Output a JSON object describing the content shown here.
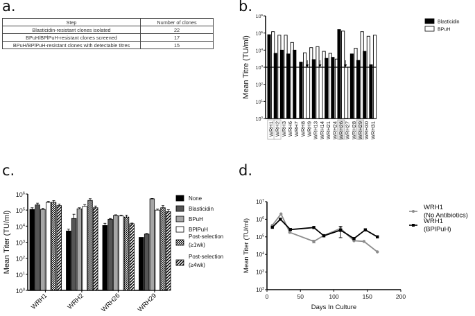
{
  "panels": {
    "a": {
      "label": "a.",
      "table": {
        "headers": [
          "Step",
          "Number of clones"
        ],
        "rows": [
          [
            "Blasticidin-resistant clones isolated",
            "22"
          ],
          [
            "BPuH/BPlPuH-resistant clones screened",
            "17"
          ],
          [
            "BPuH/BPlPuH-resistant clones with detectable titres",
            "15"
          ]
        ]
      }
    },
    "b": {
      "label": "b."
    },
    "c": {
      "label": "c."
    },
    "d": {
      "label": "d."
    }
  },
  "chart_data": [
    {
      "id": "b",
      "type": "bar",
      "title": "",
      "xlabel": "",
      "ylabel": "Mean Titre (TU/ml)",
      "yscale": "log",
      "ylim": [
        1,
        1000000
      ],
      "yticks": [
        "10^0",
        "10^1",
        "10^2",
        "10^3",
        "10^4",
        "10^5",
        "10^6"
      ],
      "threshold_line": 1000,
      "categories": [
        "WRH1",
        "WRH2",
        "WRH3",
        "WRH6",
        "WRH7",
        "WRH8",
        "WRH9",
        "WRH13",
        "WRH14",
        "WRH21",
        "WRH24",
        "WRH26",
        "WRH27",
        "WRH28",
        "WRH29",
        "WRH30",
        "WRH31"
      ],
      "boxed_categories": [
        "WRH1",
        "WRH2",
        "WRH26",
        "WRH29"
      ],
      "series": [
        {
          "name": "Blasticidin",
          "color": "#000000",
          "values": [
            80000,
            6500,
            10000,
            6000,
            10000,
            2000,
            null,
            2800,
            null,
            3300,
            3800,
            160000,
            null,
            6000,
            2500,
            8500,
            1400
          ]
        },
        {
          "name": "BPuH",
          "color": "#ffffff",
          "values": [
            120000,
            75000,
            75000,
            28000,
            null,
            7000,
            14000,
            16000,
            8500,
            6500,
            3000,
            130000,
            1000,
            13000,
            120000,
            65000,
            75000
          ]
        }
      ],
      "below_detection_arrows": [
        "WRH9",
        "WRH14",
        "WRH27"
      ],
      "legend": {
        "position": "top-right",
        "entries": [
          "Blasticidin",
          "BPuH"
        ]
      },
      "grid": false
    },
    {
      "id": "c",
      "type": "bar",
      "title": "",
      "xlabel": "",
      "ylabel": "Mean Titer (TU/ml)",
      "yscale": "log",
      "ylim": [
        1,
        1000000
      ],
      "yticks": [
        "10^0",
        "10^1",
        "10^2",
        "10^3",
        "10^4",
        "10^5",
        "10^6"
      ],
      "categories": [
        "WRH1",
        "WRH2",
        "WRH26",
        "WRH29"
      ],
      "series": [
        {
          "name": "None",
          "fill": "solid",
          "color": "#000000",
          "values": [
            110000,
            5000,
            11000,
            2000
          ],
          "errors": [
            30000,
            1500,
            4000,
            0
          ]
        },
        {
          "name": "Blasticidin",
          "fill": "solid",
          "color": "#555555",
          "values": [
            210000,
            30000,
            27000,
            3200
          ],
          "errors": [
            60000,
            25000,
            3000,
            300
          ]
        },
        {
          "name": "BPuH",
          "fill": "solid",
          "color": "#a6a6a6",
          "values": [
            110000,
            120000,
            47000,
            500000
          ],
          "errors": [
            20000,
            20000,
            4000,
            30000
          ]
        },
        {
          "name": "BPlPuH",
          "fill": "solid",
          "color": "#ffffff",
          "values": [
            300000,
            170000,
            43000,
            100000
          ],
          "errors": [
            50000,
            50000,
            6000,
            15000
          ]
        },
        {
          "name": "Post-selection (≥1wk)",
          "fill": "checker",
          "color": "#000000",
          "values": [
            310000,
            400000,
            37000,
            140000
          ],
          "errors": [
            80000,
            110000,
            12000,
            50000
          ]
        },
        {
          "name": "Post-selection (≥4wk)",
          "fill": "hatch",
          "color": "#000000",
          "values": [
            190000,
            140000,
            14000,
            80000
          ],
          "errors": [
            50000,
            40000,
            1500,
            25000
          ]
        }
      ],
      "legend": {
        "position": "right",
        "entries": [
          "None",
          "Blasticidin",
          "BPuH",
          "BPlPuH",
          "Post-selection (≥1wk)",
          "Post-selection (≥4wk)"
        ]
      },
      "grid": false
    },
    {
      "id": "d",
      "type": "line",
      "title": "",
      "xlabel": "Days In Culture",
      "ylabel": "Mean Titer (TU/ml)",
      "xlim": [
        0,
        200
      ],
      "xticks": [
        "0",
        "50",
        "100",
        "150",
        "200"
      ],
      "yscale": "log",
      "ylim": [
        100,
        10000000
      ],
      "yticks": [
        "10^2",
        "10^3",
        "10^4",
        "10^5",
        "10^6",
        "10^7"
      ],
      "series": [
        {
          "name": "WRH1 (No Antibiotics)",
          "label_lines": [
            "WRH1",
            "(No Antibiotics)"
          ],
          "color": "#8c8c8c",
          "marker": "circle",
          "x": [
            8,
            21,
            34,
            70,
            85,
            110,
            130,
            145,
            165
          ],
          "y": [
            450000,
            2000000,
            180000,
            55000,
            120000,
            300000,
            60000,
            55000,
            14000
          ],
          "errors": [
            0,
            0,
            0,
            10000,
            0,
            100000,
            0,
            0,
            0
          ]
        },
        {
          "name": "WRH1 (BPlPuH)",
          "label_lines": [
            "WRH1",
            "(BPlPuH)"
          ],
          "color": "#000000",
          "marker": "square",
          "x": [
            8,
            20,
            35,
            70,
            85,
            110,
            130,
            147,
            165
          ],
          "y": [
            350000,
            1000000,
            260000,
            340000,
            115000,
            240000,
            80000,
            250000,
            100000
          ],
          "errors": [
            0,
            0,
            0,
            0,
            0,
            150000,
            0,
            0,
            0
          ]
        }
      ],
      "legend": {
        "position": "right",
        "entries": [
          "WRH1 (No Antibiotics)",
          "WRH1 (BPlPuH)"
        ]
      },
      "grid": false
    }
  ]
}
